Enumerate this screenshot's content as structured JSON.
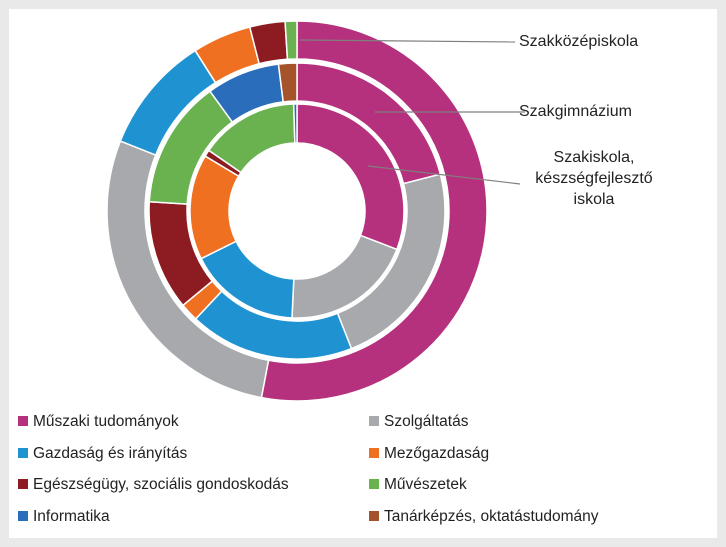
{
  "chart_data": {
    "type": "donut",
    "categories": [
      "Műszaki tudományok",
      "Szolgáltatás",
      "Gazdaság és irányítás",
      "Mezőgazdaság",
      "Egészségügy, szociális gondoskodás",
      "Művészetek",
      "Informatika",
      "Tanárképzés, oktatástudomány"
    ],
    "colors": [
      "#b5317d",
      "#a7a9ac",
      "#1f93d2",
      "#f07022",
      "#8c1c22",
      "#6ab24f",
      "#2a6ebb",
      "#a5532a"
    ],
    "series": [
      {
        "name": "Szakközépiskola",
        "values": [
          53,
          28,
          10,
          5,
          3,
          1,
          0,
          0
        ]
      },
      {
        "name": "Szakgimnázium",
        "values": [
          21,
          23,
          18,
          2,
          12,
          14,
          8,
          2
        ]
      },
      {
        "name": "Szakiskola, készségfejlesztő iskola",
        "values": [
          31,
          20,
          17,
          16,
          1,
          15,
          0.5,
          0
        ]
      }
    ]
  }
}
